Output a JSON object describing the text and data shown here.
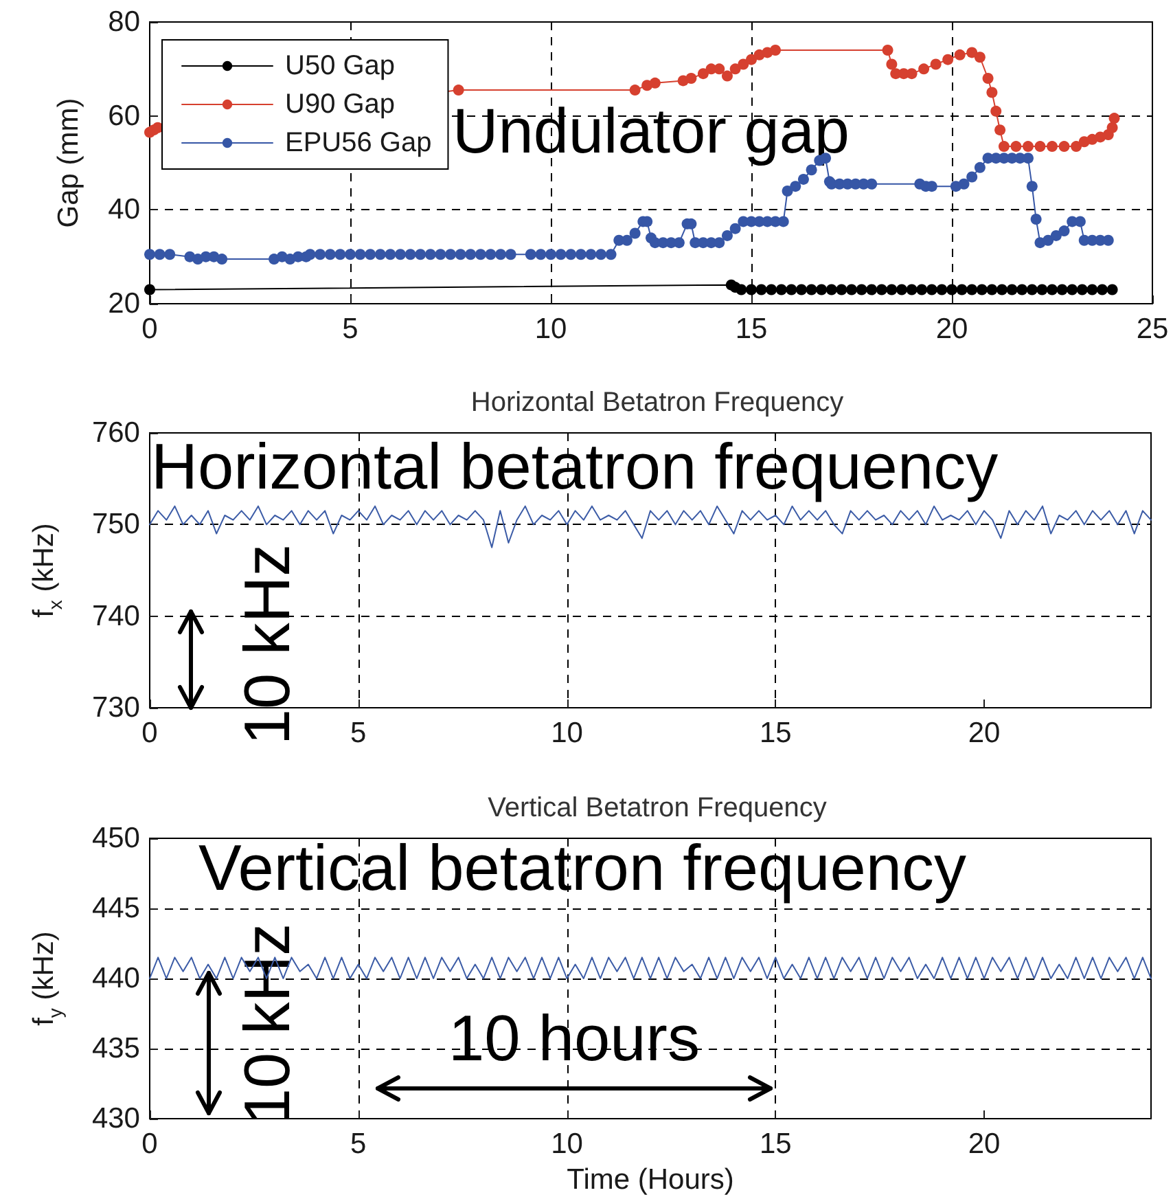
{
  "chart_data": [
    {
      "type": "line",
      "ylabel": "Gap (mm)",
      "xlim": [
        0,
        25
      ],
      "xticks": [
        0,
        5,
        10,
        15,
        20,
        25
      ],
      "ylim": [
        20,
        80
      ],
      "yticks": [
        20,
        40,
        60,
        80
      ],
      "grid": true,
      "legend": "top left",
      "marker": "circle",
      "annotations": [
        "Undulator gap"
      ],
      "series": [
        {
          "name": "U50 Gap",
          "color": "#000000",
          "x": [
            0,
            14.5,
            14.6,
            14.75,
            15,
            15.25,
            15.5,
            15.75,
            16,
            16.25,
            16.5,
            16.75,
            17,
            17.25,
            17.5,
            17.75,
            18,
            18.25,
            18.5,
            18.75,
            19,
            19.25,
            19.5,
            19.75,
            20,
            20.25,
            20.5,
            20.75,
            21,
            21.25,
            21.5,
            21.75,
            22,
            22.25,
            22.5,
            22.75,
            23,
            23.25,
            23.5,
            23.75,
            24
          ],
          "values": [
            23,
            24,
            23.5,
            23,
            23,
            23,
            23,
            23,
            23,
            23,
            23,
            23,
            23,
            23,
            23,
            23,
            23,
            23,
            23,
            23,
            23,
            23,
            23,
            23,
            23,
            23,
            23,
            23,
            23,
            23,
            23,
            23,
            23,
            23,
            23,
            23,
            23,
            23,
            23,
            23,
            23
          ]
        },
        {
          "name": "U90 Gap",
          "color": "#d6402f",
          "x": [
            0,
            0.1,
            0.2,
            7.7,
            12.1,
            12.4,
            12.6,
            13.3,
            13.5,
            13.8,
            14,
            14.2,
            14.4,
            14.6,
            14.8,
            15,
            15.2,
            15.4,
            15.6,
            18.4,
            18.5,
            18.6,
            18.8,
            19,
            19.3,
            19.6,
            19.9,
            20.2,
            20.5,
            20.7,
            20.9,
            21,
            21.1,
            21.2,
            21.3,
            21.6,
            21.9,
            22.2,
            22.5,
            22.8,
            23.1,
            23.3,
            23.5,
            23.7,
            23.9,
            24,
            24.05
          ],
          "values": [
            56.5,
            57,
            57.5,
            65.5,
            65.5,
            66.5,
            67,
            67.5,
            68,
            69,
            70,
            70,
            68.5,
            70,
            71,
            72,
            73,
            73.5,
            74,
            74,
            71,
            69,
            69,
            69,
            70,
            71,
            72,
            73,
            73.5,
            72.5,
            68,
            65,
            61,
            57,
            53.5,
            53.5,
            53.5,
            53.5,
            53.5,
            53.5,
            53.5,
            54.5,
            55,
            55.5,
            56,
            57.5,
            59.5
          ]
        },
        {
          "name": "EPU56 Gap",
          "color": "#3656a6",
          "x": [
            0,
            0.25,
            0.5,
            1,
            1.2,
            1.4,
            1.6,
            1.8,
            3.1,
            3.3,
            3.5,
            3.7,
            3.9,
            4,
            4.25,
            4.5,
            4.75,
            5,
            5.25,
            5.5,
            5.75,
            6,
            6.25,
            6.5,
            6.75,
            7,
            7.25,
            7.5,
            7.75,
            8,
            8.25,
            8.5,
            8.75,
            9,
            9.5,
            9.75,
            10,
            10.25,
            10.5,
            10.75,
            11,
            11.25,
            11.5,
            11.7,
            11.9,
            12.1,
            12.3,
            12.4,
            12.5,
            12.6,
            12.8,
            13,
            13.2,
            13.4,
            13.5,
            13.6,
            13.8,
            14,
            14.2,
            14.4,
            14.6,
            14.8,
            15,
            15.2,
            15.4,
            15.6,
            15.8,
            15.9,
            16.1,
            16.3,
            16.5,
            16.7,
            16.85,
            16.95,
            17,
            17.2,
            17.4,
            17.6,
            17.8,
            18,
            19.2,
            19.35,
            19.5,
            20.1,
            20.3,
            20.5,
            20.7,
            20.9,
            21.1,
            21.3,
            21.5,
            21.7,
            21.9,
            22,
            22.1,
            22.2,
            22.4,
            22.6,
            22.8,
            23,
            23.2,
            23.3,
            23.5,
            23.7,
            23.9
          ],
          "values": [
            30.5,
            30.5,
            30.5,
            30,
            29.5,
            30,
            30,
            29.5,
            29.5,
            30,
            29.5,
            30,
            30,
            30.5,
            30.5,
            30.5,
            30.5,
            30.5,
            30.5,
            30.5,
            30.5,
            30.5,
            30.5,
            30.5,
            30.5,
            30.5,
            30.5,
            30.5,
            30.5,
            30.5,
            30.5,
            30.5,
            30.5,
            30.5,
            30.5,
            30.5,
            30.5,
            30.5,
            30.5,
            30.5,
            30.5,
            30.5,
            30.5,
            33.5,
            33.5,
            35,
            37.5,
            37.5,
            34,
            33,
            33,
            33,
            33,
            37,
            37,
            33,
            33,
            33,
            33,
            34.5,
            36,
            37.5,
            37.5,
            37.5,
            37.5,
            37.5,
            37.5,
            44,
            45,
            46.5,
            48.5,
            50.5,
            51,
            46,
            45.5,
            45.5,
            45.5,
            45.5,
            45.5,
            45.5,
            45.5,
            45,
            45,
            45,
            45.5,
            47,
            49,
            51,
            51,
            51,
            51,
            51,
            51,
            45,
            38,
            33,
            33.5,
            34.5,
            35.5,
            37.5,
            37.5,
            33.5,
            33.5,
            33.5,
            33.5
          ]
        }
      ]
    },
    {
      "type": "line",
      "title": "Horizontal Betatron Frequency",
      "ylabel": "f$_{x}$ (kHz)",
      "xlim": [
        0,
        24
      ],
      "xticks": [
        0,
        5,
        10,
        15,
        20
      ],
      "ylim": [
        730,
        760
      ],
      "yticks": [
        730,
        740,
        750,
        760
      ],
      "grid": true,
      "marker": "none",
      "color": "#3b5ba6",
      "annotations": [
        "Horizontal betatron frequency",
        "10 kHz"
      ],
      "x": [
        0,
        0.2,
        0.4,
        0.6,
        0.8,
        1,
        1.2,
        1.4,
        1.6,
        1.8,
        2,
        2.2,
        2.4,
        2.6,
        2.8,
        3,
        3.2,
        3.4,
        3.6,
        3.8,
        4,
        4.2,
        4.4,
        4.6,
        4.8,
        5,
        5.2,
        5.4,
        5.6,
        5.8,
        6,
        6.2,
        6.4,
        6.6,
        6.8,
        7,
        7.2,
        7.4,
        7.6,
        7.8,
        8,
        8.2,
        8.4,
        8.6,
        8.8,
        9,
        9.2,
        9.4,
        9.6,
        9.8,
        10,
        10.2,
        10.4,
        10.6,
        10.8,
        11,
        11.2,
        11.4,
        11.6,
        11.8,
        12,
        12.2,
        12.4,
        12.6,
        12.8,
        13,
        13.2,
        13.4,
        13.6,
        13.8,
        14,
        14.2,
        14.4,
        14.6,
        14.8,
        15,
        15.2,
        15.4,
        15.6,
        15.8,
        16,
        16.2,
        16.4,
        16.6,
        16.8,
        17,
        17.2,
        17.4,
        17.6,
        17.8,
        18,
        18.2,
        18.4,
        18.6,
        18.8,
        19,
        19.2,
        19.4,
        19.6,
        19.8,
        20,
        20.2,
        20.4,
        20.6,
        20.8,
        21,
        21.2,
        21.4,
        21.6,
        21.8,
        22,
        22.2,
        22.4,
        22.6,
        22.8,
        23,
        23.2,
        23.4,
        23.6,
        23.8,
        24
      ],
      "values": [
        750,
        751.5,
        750.5,
        752,
        750,
        751,
        750,
        751.5,
        749,
        751,
        750.5,
        751.5,
        750.5,
        752,
        750,
        751,
        750.5,
        751.5,
        750,
        751.5,
        750.5,
        751.5,
        749,
        751,
        750.5,
        751.5,
        750.5,
        752,
        750,
        751,
        750.5,
        751.5,
        750,
        751.5,
        750.5,
        751.5,
        750,
        751,
        750.5,
        751.5,
        750.5,
        747.5,
        751.5,
        748,
        750.5,
        752,
        750,
        751,
        750.5,
        751.5,
        750,
        751.5,
        750.5,
        752,
        750.5,
        751,
        750.5,
        751.5,
        750,
        748.5,
        751.5,
        750.5,
        751.5,
        750,
        751.5,
        750.5,
        751.5,
        750,
        752,
        750.5,
        749,
        751.5,
        750.5,
        751.5,
        750.5,
        751,
        750,
        752,
        750.5,
        751.5,
        750.5,
        751.5,
        750,
        749,
        751.5,
        750.5,
        751.5,
        750.5,
        751,
        750,
        751.5,
        750.5,
        751.5,
        750,
        752,
        750.5,
        751,
        750.5,
        751.5,
        750,
        751.5,
        750.5,
        748.5,
        751.5,
        750,
        751.5,
        750.5,
        752,
        749,
        751,
        750.5,
        751.5,
        750,
        751.5,
        750.5,
        751.5,
        750,
        751.5,
        749,
        751.5,
        750.5
      ]
    },
    {
      "type": "line",
      "title": "Vertical Betatron Frequency",
      "xlabel": "Time (Hours)",
      "ylabel": "f$_{y}$ (kHz)",
      "xlim": [
        0,
        24
      ],
      "xticks": [
        0,
        5,
        10,
        15,
        20
      ],
      "ylim": [
        430,
        450
      ],
      "yticks": [
        430,
        435,
        440,
        445,
        450
      ],
      "grid": true,
      "marker": "none",
      "color": "#3b5ba6",
      "annotations": [
        "Vertical betatron frequency",
        "10 kHz",
        "10 hours"
      ],
      "x": [
        0,
        0.2,
        0.4,
        0.6,
        0.8,
        1,
        1.2,
        1.4,
        1.6,
        1.8,
        2,
        2.2,
        2.4,
        2.6,
        2.8,
        3,
        3.2,
        3.4,
        3.6,
        3.8,
        4,
        4.2,
        4.4,
        4.6,
        4.8,
        5,
        5.2,
        5.4,
        5.6,
        5.8,
        6,
        6.2,
        6.4,
        6.6,
        6.8,
        7,
        7.2,
        7.4,
        7.6,
        7.8,
        8,
        8.2,
        8.4,
        8.6,
        8.8,
        9,
        9.2,
        9.4,
        9.6,
        9.8,
        10,
        10.2,
        10.4,
        10.6,
        10.8,
        11,
        11.2,
        11.4,
        11.6,
        11.8,
        12,
        12.2,
        12.4,
        12.6,
        12.8,
        13,
        13.2,
        13.4,
        13.6,
        13.8,
        14,
        14.2,
        14.4,
        14.6,
        14.8,
        15,
        15.2,
        15.4,
        15.6,
        15.8,
        16,
        16.2,
        16.4,
        16.6,
        16.8,
        17,
        17.2,
        17.4,
        17.6,
        17.8,
        18,
        18.2,
        18.4,
        18.6,
        18.8,
        19,
        19.2,
        19.4,
        19.6,
        19.8,
        20,
        20.2,
        20.4,
        20.6,
        20.8,
        21,
        21.2,
        21.4,
        21.6,
        21.8,
        22,
        22.2,
        22.4,
        22.6,
        22.8,
        23,
        23.2,
        23.4,
        23.6,
        23.8,
        24
      ],
      "values": [
        440,
        441.5,
        440,
        441.5,
        440.5,
        441.5,
        440,
        441,
        440,
        441.5,
        440,
        441.5,
        440.5,
        441.5,
        440,
        441.5,
        440,
        441.5,
        440.5,
        441,
        440,
        441.5,
        440,
        441.5,
        440,
        441,
        440,
        441.5,
        440.5,
        441.5,
        440,
        441.5,
        440,
        441.5,
        440,
        441.5,
        440.5,
        441.5,
        440,
        441,
        440,
        441.5,
        440,
        441.5,
        440.5,
        441.5,
        440,
        441.5,
        440,
        441.5,
        440,
        441,
        440,
        441.5,
        440,
        441.5,
        440.5,
        441.5,
        440,
        441.5,
        440,
        441.5,
        440,
        441.5,
        440.5,
        441,
        440,
        441.5,
        440,
        441.5,
        440,
        441.5,
        440.5,
        441.5,
        440,
        441.5,
        440,
        441,
        440,
        441.5,
        440,
        441.5,
        440,
        441.5,
        440.5,
        441.5,
        440,
        441.5,
        440,
        441.5,
        440.5,
        441.5,
        440,
        441,
        440,
        441.5,
        440,
        441.5,
        440,
        441.5,
        440,
        441.5,
        440.5,
        441.5,
        440,
        441.5,
        440,
        441.5,
        440,
        441,
        440,
        441.5,
        440,
        441.5,
        440,
        441.5,
        440.5,
        441.5,
        440,
        441.5,
        440
      ]
    }
  ]
}
